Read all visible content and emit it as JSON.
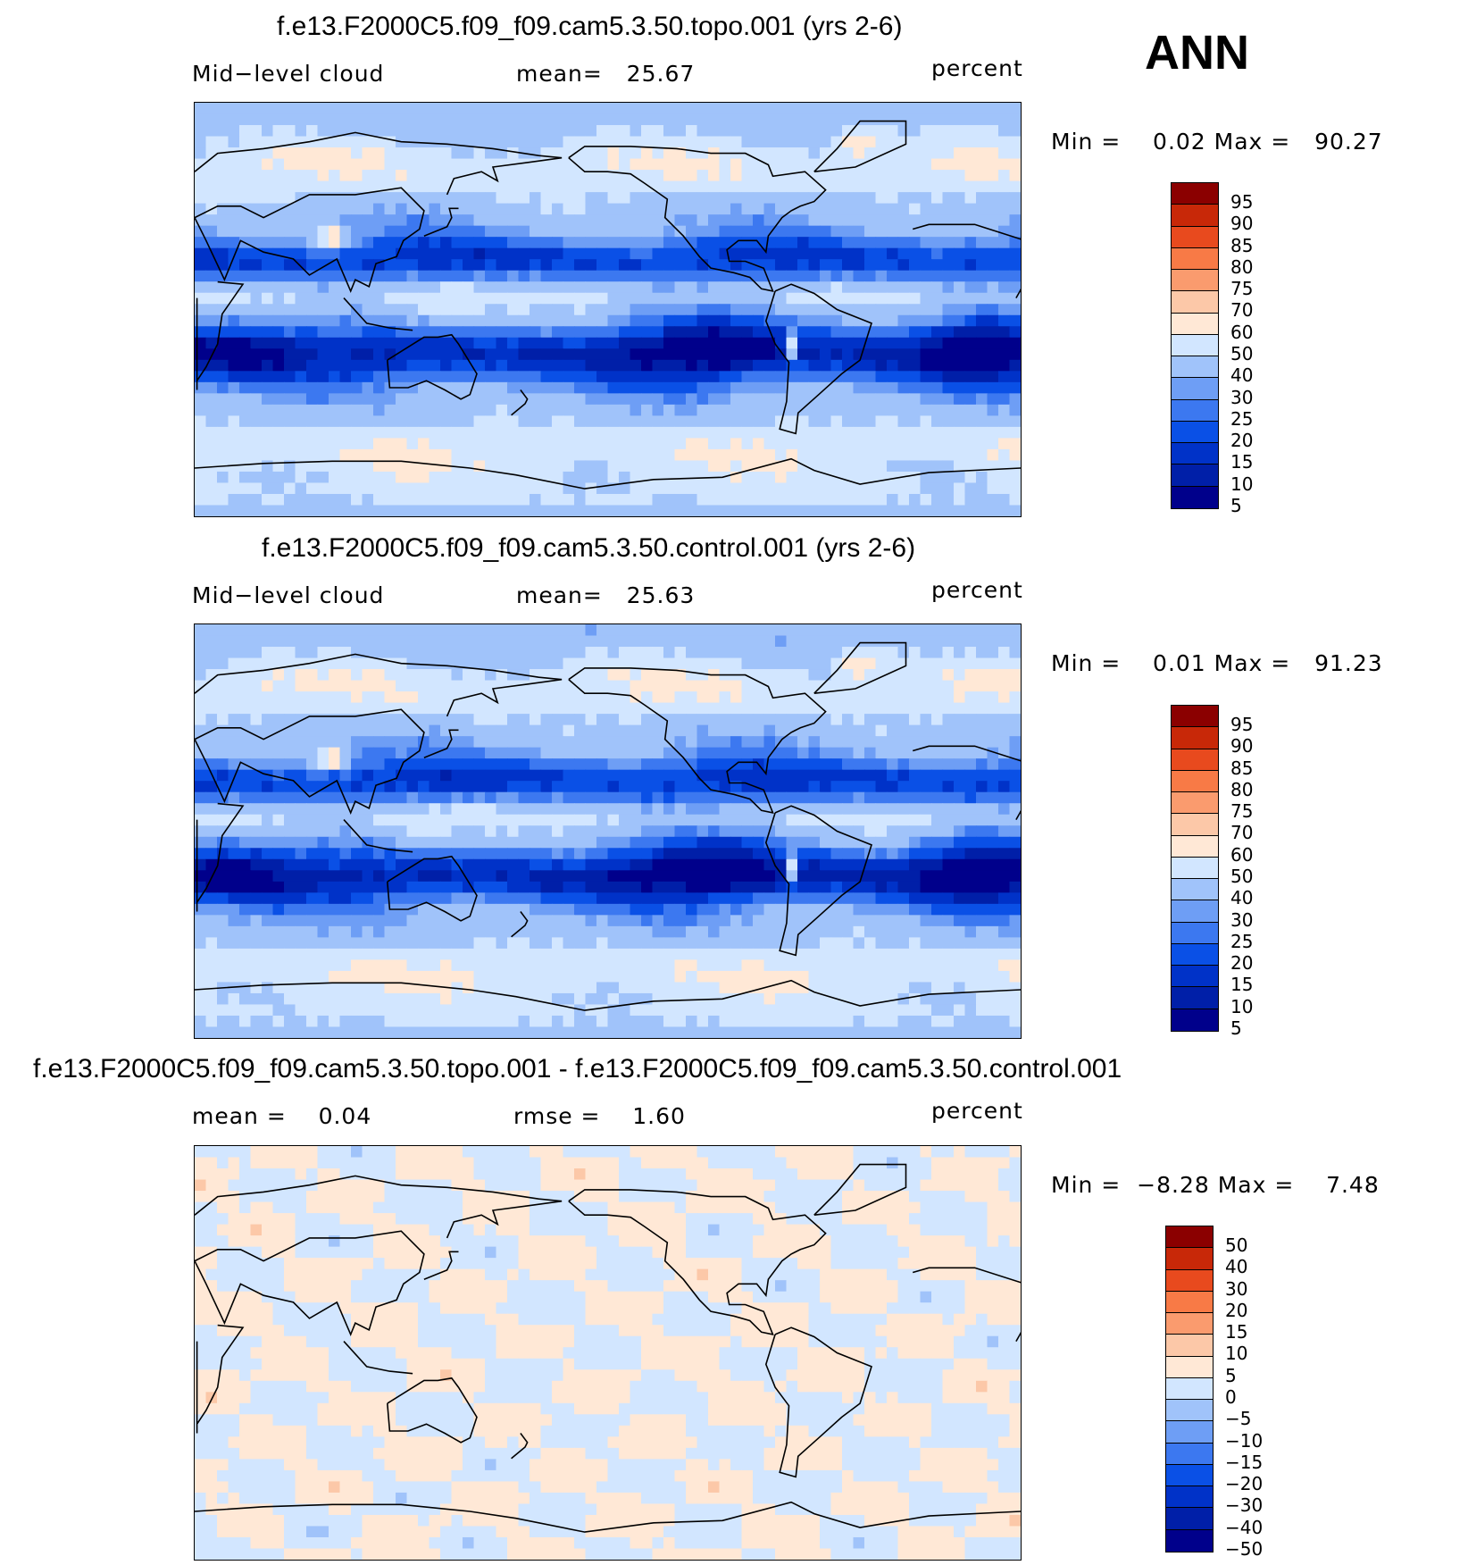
{
  "season": "ANN",
  "colors": {
    "levels_abs": [
      "#00008b",
      "#001fa8",
      "#0032c8",
      "#0a50e6",
      "#3c78f0",
      "#6e9ef5",
      "#a0c3fa",
      "#d2e6ff",
      "#ffe8d6",
      "#fcc8a8",
      "#fa9b6e",
      "#f87a46",
      "#e84a1e",
      "#c82808",
      "#8b0000"
    ],
    "levels_diff": [
      "#00008b",
      "#001fa8",
      "#0032c8",
      "#0a50e6",
      "#3c78f0",
      "#6e9ef5",
      "#a0c3fa",
      "#d2e6ff",
      "#ffe8d6",
      "#fcc8a8",
      "#fa9b6e",
      "#f87a46",
      "#e84a1e",
      "#c82808",
      "#8b0000"
    ],
    "land_outline": "#000000"
  },
  "panels": [
    {
      "title": "f.e13.F2000C5.f09_f09.cam5.3.50.topo.001 (yrs 2-6)",
      "left_label": "Mid−level cloud",
      "center_label": "mean=   25.67",
      "right_label": "percent",
      "minmax": "Min =    0.02 Max =   90.27",
      "colorbar_labels": [
        "95",
        "90",
        "85",
        "80",
        "75",
        "70",
        "60",
        "50",
        "40",
        "30",
        "25",
        "20",
        "15",
        "10",
        "5"
      ],
      "field": "abs"
    },
    {
      "title": "f.e13.F2000C5.f09_f09.cam5.3.50.control.001 (yrs 2-6)",
      "left_label": "Mid−level cloud",
      "center_label": "mean=   25.63",
      "right_label": "percent",
      "minmax": "Min =    0.01 Max =   91.23",
      "colorbar_labels": [
        "95",
        "90",
        "85",
        "80",
        "75",
        "70",
        "60",
        "50",
        "40",
        "30",
        "25",
        "20",
        "15",
        "10",
        "5"
      ],
      "field": "abs"
    },
    {
      "title": "f.e13.F2000C5.f09_f09.cam5.3.50.topo.001 - f.e13.F2000C5.f09_f09.cam5.3.50.control.001",
      "left_label": "mean =    0.04",
      "center_label": "rmse =    1.60",
      "right_label": "percent",
      "minmax": "Min =  −8.28 Max =    7.48",
      "colorbar_labels": [
        "50",
        "40",
        "30",
        "20",
        "15",
        "10",
        "5",
        "0",
        "−5",
        "−10",
        "−15",
        "−20",
        "−30",
        "−40",
        "−50"
      ],
      "field": "diff"
    }
  ]
}
